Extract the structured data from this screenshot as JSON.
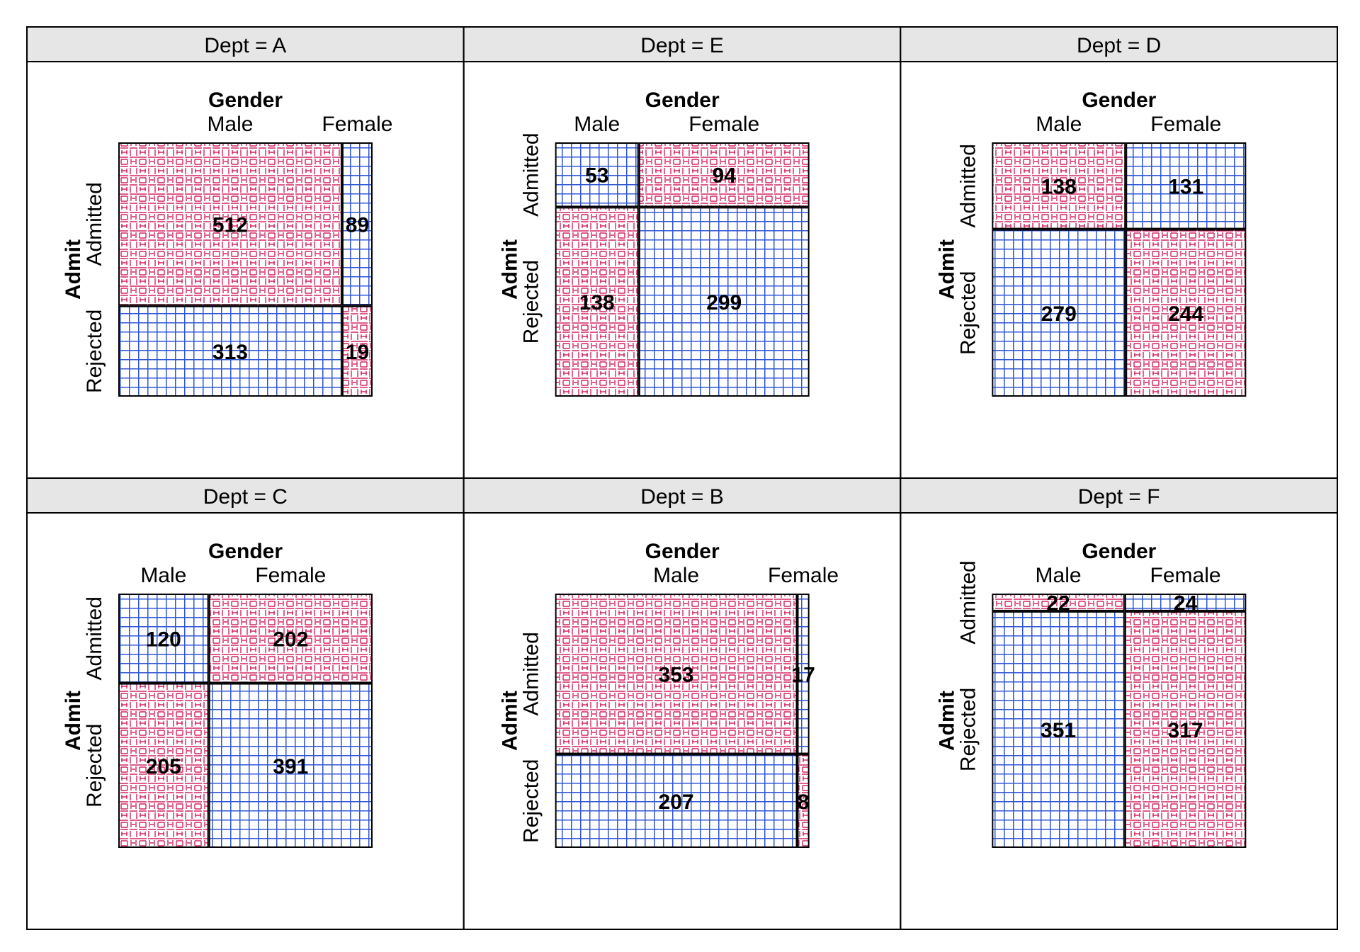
{
  "chart_data": {
    "type": "mosaic",
    "row_variable": "Admit",
    "column_variable": "Gender",
    "row_levels": [
      "Admitted",
      "Rejected"
    ],
    "column_levels": [
      "Male",
      "Female"
    ],
    "colors": {
      "positive": "#d4255f",
      "negative": "#2f55d4",
      "strip": "#e6e6e6"
    },
    "panels": [
      {
        "strip": "Dept = A",
        "counts": [
          [
            512,
            89
          ],
          [
            313,
            19
          ]
        ],
        "shading": [
          [
            "positive",
            "negative"
          ],
          [
            "negative",
            "positive"
          ]
        ]
      },
      {
        "strip": "Dept = C",
        "counts": [
          [
            120,
            202
          ],
          [
            205,
            391
          ]
        ],
        "shading": [
          [
            "negative",
            "positive"
          ],
          [
            "positive",
            "negative"
          ]
        ]
      },
      {
        "strip": "Dept = E",
        "counts": [
          [
            53,
            94
          ],
          [
            138,
            299
          ]
        ],
        "shading": [
          [
            "negative",
            "positive"
          ],
          [
            "positive",
            "negative"
          ]
        ]
      },
      {
        "strip": "Dept = B",
        "counts": [
          [
            353,
            17
          ],
          [
            207,
            8
          ]
        ],
        "shading": [
          [
            "positive",
            "negative"
          ],
          [
            "negative",
            "positive"
          ]
        ]
      },
      {
        "strip": "Dept = D",
        "counts": [
          [
            138,
            131
          ],
          [
            279,
            244
          ]
        ],
        "shading": [
          [
            "positive",
            "negative"
          ],
          [
            "negative",
            "positive"
          ]
        ]
      },
      {
        "strip": "Dept = F",
        "counts": [
          [
            22,
            24
          ],
          [
            351,
            317
          ]
        ],
        "shading": [
          [
            "positive",
            "negative"
          ],
          [
            "negative",
            "positive"
          ]
        ]
      }
    ]
  }
}
